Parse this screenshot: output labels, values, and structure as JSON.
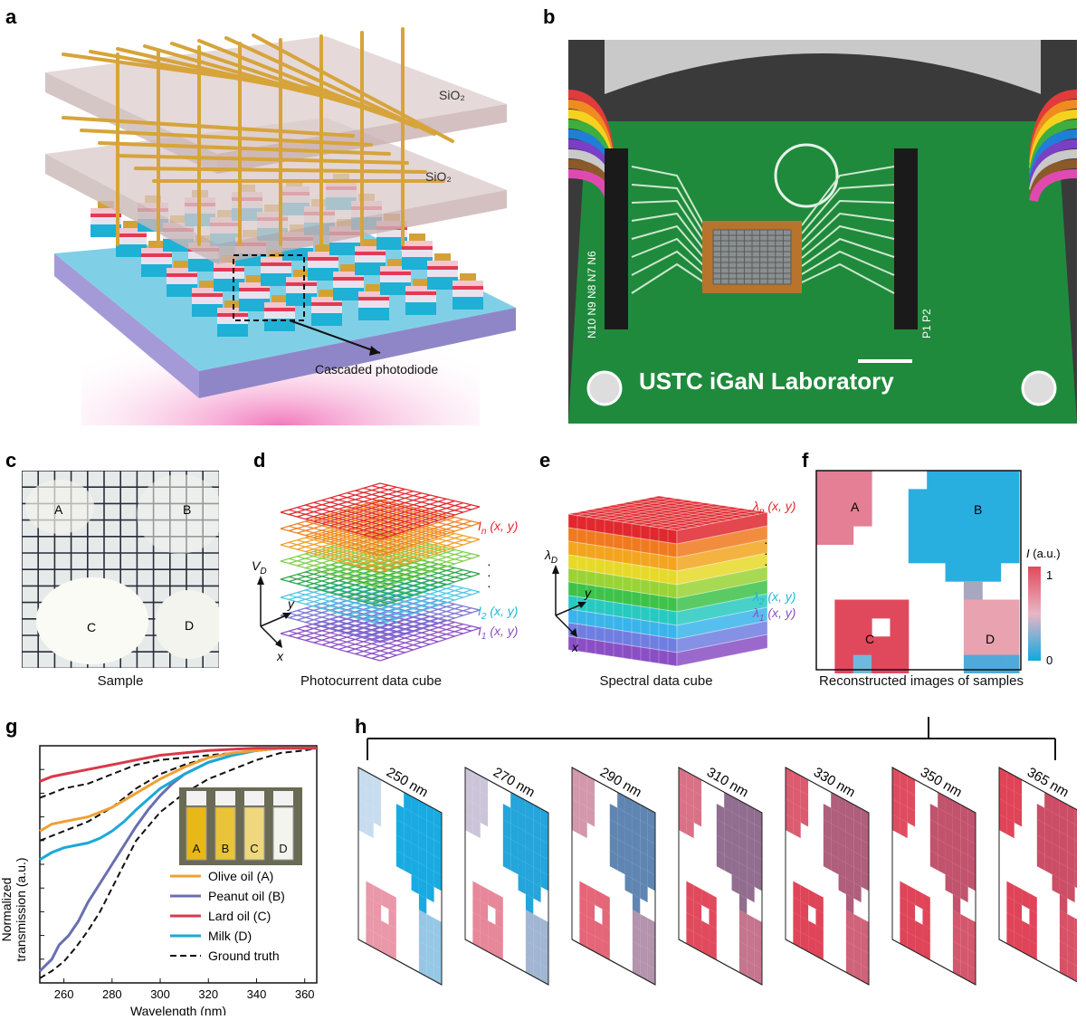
{
  "labels": {
    "a": "a",
    "b": "b",
    "c": "c",
    "d": "d",
    "e": "e",
    "f": "f",
    "g": "g",
    "h": "h"
  },
  "panel_a": {
    "layer1": "SiO₂",
    "layer2": "SiO₂",
    "callout": "Cascaded photodiode"
  },
  "panel_b": {
    "board_text": "USTC iGaN Laboratory",
    "left_pins": "N10 N9 N8 N7 N6",
    "right_pins": "P1 P2"
  },
  "panel_c": {
    "caption": "Sample",
    "samples": [
      "A",
      "B",
      "C",
      "D"
    ]
  },
  "panel_d": {
    "caption": "Photocurrent data cube",
    "axis_v": "V",
    "axis_v_sub": "D",
    "axis_y": "y",
    "axis_x": "x",
    "labels": [
      {
        "main": "I",
        "sub": "n",
        "rest": " (x, y)",
        "color": "#e0282e"
      },
      {
        "main": "I",
        "sub": "2",
        "rest": " (x, y)",
        "color": "#1fb5d6"
      },
      {
        "main": "I",
        "sub": "1",
        "rest": " (x, y)",
        "color": "#8a4fc4"
      }
    ]
  },
  "panel_e": {
    "caption": "Spectral data cube",
    "axis_l": "λ",
    "axis_l_sub": "D",
    "axis_y": "y",
    "axis_x": "x",
    "labels": [
      {
        "main": "λ",
        "sub": "n",
        "rest": " (x, y)",
        "color": "#e0282e"
      },
      {
        "main": "λ",
        "sub": "2",
        "rest": " (x, y)",
        "color": "#1fb5d6"
      },
      {
        "main": "λ",
        "sub": "1",
        "rest": " (x, y)",
        "color": "#8a4fc4"
      }
    ]
  },
  "panel_f": {
    "caption": "Reconstructed images of samples",
    "colorbar_title": "I (a.u.)",
    "colorbar_max": "1",
    "colorbar_min": "0",
    "samples": [
      "A",
      "B",
      "C",
      "D"
    ]
  },
  "panel_h": {
    "wavelengths": [
      "250 nm",
      "270 nm",
      "290 nm",
      "310 nm",
      "330 nm",
      "350 nm",
      "365 nm"
    ],
    "redness": [
      0.0,
      0.15,
      0.45,
      0.7,
      0.85,
      0.95,
      1.0
    ]
  },
  "chart_data": {
    "type": "line",
    "xlabel": "Wavelength (nm)",
    "ylabel": "Normalized transmission (a.u.)",
    "xlim": [
      250,
      365
    ],
    "ylim": [
      0,
      1
    ],
    "xticks": [
      260,
      280,
      300,
      320,
      340,
      360
    ],
    "legend_position": "bottom-right",
    "inset_labels": [
      "A",
      "B",
      "C",
      "D"
    ],
    "series": [
      {
        "name": "Olive oil (A)",
        "color": "#f0a034",
        "dash": false,
        "x": [
          250,
          255,
          260,
          265,
          270,
          275,
          280,
          285,
          290,
          300,
          310,
          320,
          330,
          340,
          350,
          360,
          365
        ],
        "y": [
          0.64,
          0.67,
          0.68,
          0.69,
          0.7,
          0.72,
          0.74,
          0.77,
          0.8,
          0.86,
          0.91,
          0.95,
          0.97,
          0.98,
          0.99,
          0.99,
          0.99
        ]
      },
      {
        "name": "Peanut oil (B)",
        "color": "#6a6fb0",
        "dash": false,
        "x": [
          250,
          255,
          258,
          262,
          266,
          270,
          275,
          280,
          285,
          290,
          295,
          300,
          305,
          310,
          320,
          330,
          340,
          350,
          360,
          365
        ],
        "y": [
          0.05,
          0.1,
          0.16,
          0.2,
          0.26,
          0.34,
          0.42,
          0.5,
          0.58,
          0.66,
          0.73,
          0.79,
          0.84,
          0.88,
          0.93,
          0.96,
          0.98,
          0.99,
          0.99,
          0.99
        ]
      },
      {
        "name": "Lard oil (C)",
        "color": "#d9394a",
        "dash": false,
        "x": [
          250,
          255,
          260,
          265,
          270,
          280,
          290,
          300,
          310,
          320,
          330,
          340,
          350,
          360,
          365
        ],
        "y": [
          0.85,
          0.87,
          0.88,
          0.89,
          0.9,
          0.92,
          0.94,
          0.96,
          0.97,
          0.98,
          0.985,
          0.99,
          0.99,
          0.99,
          0.99
        ]
      },
      {
        "name": "Milk (D)",
        "color": "#1aa9d6",
        "dash": false,
        "x": [
          250,
          255,
          260,
          265,
          270,
          275,
          280,
          285,
          290,
          300,
          310,
          320,
          330,
          340,
          350,
          360,
          365
        ],
        "y": [
          0.52,
          0.55,
          0.57,
          0.58,
          0.59,
          0.61,
          0.64,
          0.68,
          0.73,
          0.82,
          0.88,
          0.93,
          0.96,
          0.98,
          0.99,
          0.99,
          0.99
        ]
      },
      {
        "name": "Ground truth",
        "color": "#111111",
        "dash": true,
        "x": [
          250,
          255,
          260,
          265,
          270,
          275,
          280,
          285,
          290,
          300,
          310,
          320,
          330,
          340,
          350,
          360,
          365
        ],
        "y": [
          0.78,
          0.8,
          0.82,
          0.83,
          0.84,
          0.86,
          0.88,
          0.9,
          0.92,
          0.94,
          0.95,
          0.96,
          0.97,
          0.98,
          0.99,
          0.99,
          0.99
        ]
      },
      {
        "name": "",
        "color": "#111111",
        "dash": true,
        "x": [
          250,
          255,
          260,
          265,
          270,
          275,
          280,
          285,
          290,
          300,
          310,
          320,
          330,
          340,
          350,
          360,
          365
        ],
        "y": [
          0.6,
          0.62,
          0.64,
          0.66,
          0.68,
          0.71,
          0.74,
          0.78,
          0.82,
          0.88,
          0.92,
          0.95,
          0.97,
          0.98,
          0.99,
          0.99,
          0.99
        ]
      },
      {
        "name": "",
        "color": "#111111",
        "dash": true,
        "x": [
          250,
          255,
          260,
          265,
          270,
          275,
          280,
          285,
          290,
          300,
          310,
          320,
          330,
          340,
          350,
          360,
          365
        ],
        "y": [
          0.02,
          0.05,
          0.09,
          0.15,
          0.22,
          0.3,
          0.4,
          0.5,
          0.6,
          0.72,
          0.8,
          0.86,
          0.9,
          0.94,
          0.97,
          0.98,
          0.99
        ]
      }
    ]
  }
}
